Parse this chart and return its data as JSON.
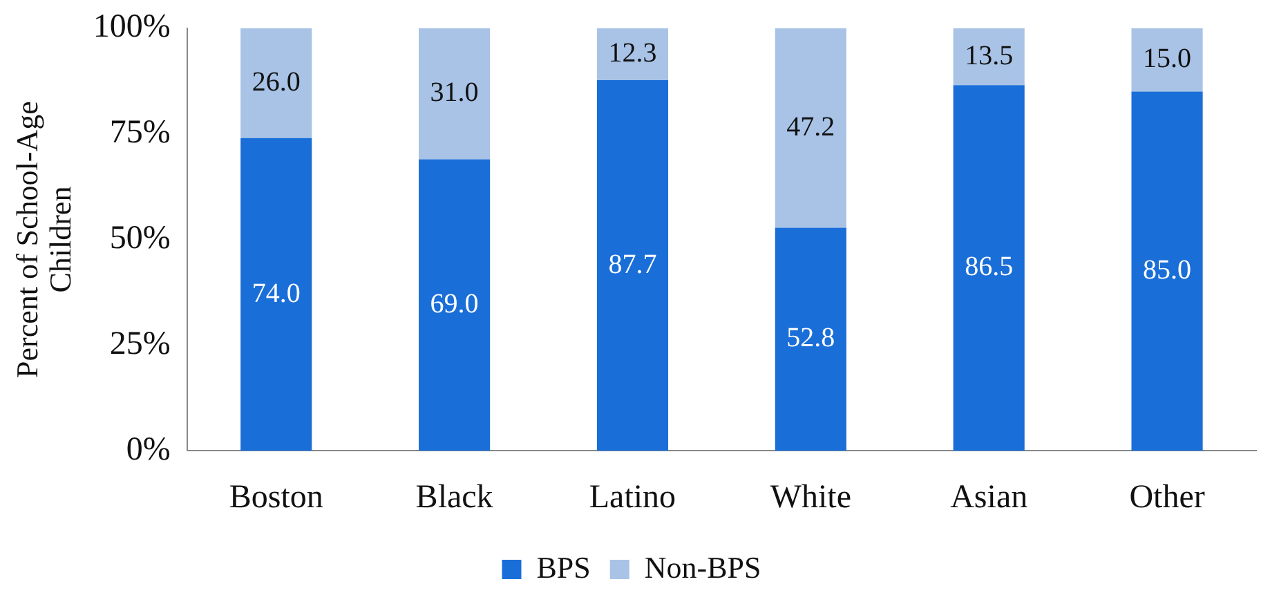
{
  "chart_data": {
    "type": "bar",
    "ylabel": "Percent of School-Age Children",
    "categories": [
      "Boston",
      "Black",
      "Latino",
      "White",
      "Asian",
      "Other"
    ],
    "series": [
      {
        "name": "BPS",
        "color": "#1a6ed8",
        "values": [
          74.0,
          69.0,
          87.7,
          52.8,
          86.5,
          85.0
        ],
        "value_labels": [
          "74.0",
          "69.0",
          "87.7",
          "52.8",
          "86.5",
          "85.0"
        ]
      },
      {
        "name": "Non-BPS",
        "color": "#a8c3e6",
        "values": [
          26.0,
          31.0,
          12.3,
          47.2,
          13.5,
          15.0
        ],
        "value_labels": [
          "26.0",
          "31.0",
          "12.3",
          "47.2",
          "13.5",
          "15.0"
        ]
      }
    ],
    "stacked": true,
    "ylim": [
      0,
      100
    ],
    "yticks": [
      {
        "value": 0,
        "label": "0%"
      },
      {
        "value": 25,
        "label": "25%"
      },
      {
        "value": 50,
        "label": "50%"
      },
      {
        "value": 75,
        "label": "75%"
      },
      {
        "value": 100,
        "label": "100%"
      }
    ],
    "grid": false,
    "legend": "bottom"
  }
}
